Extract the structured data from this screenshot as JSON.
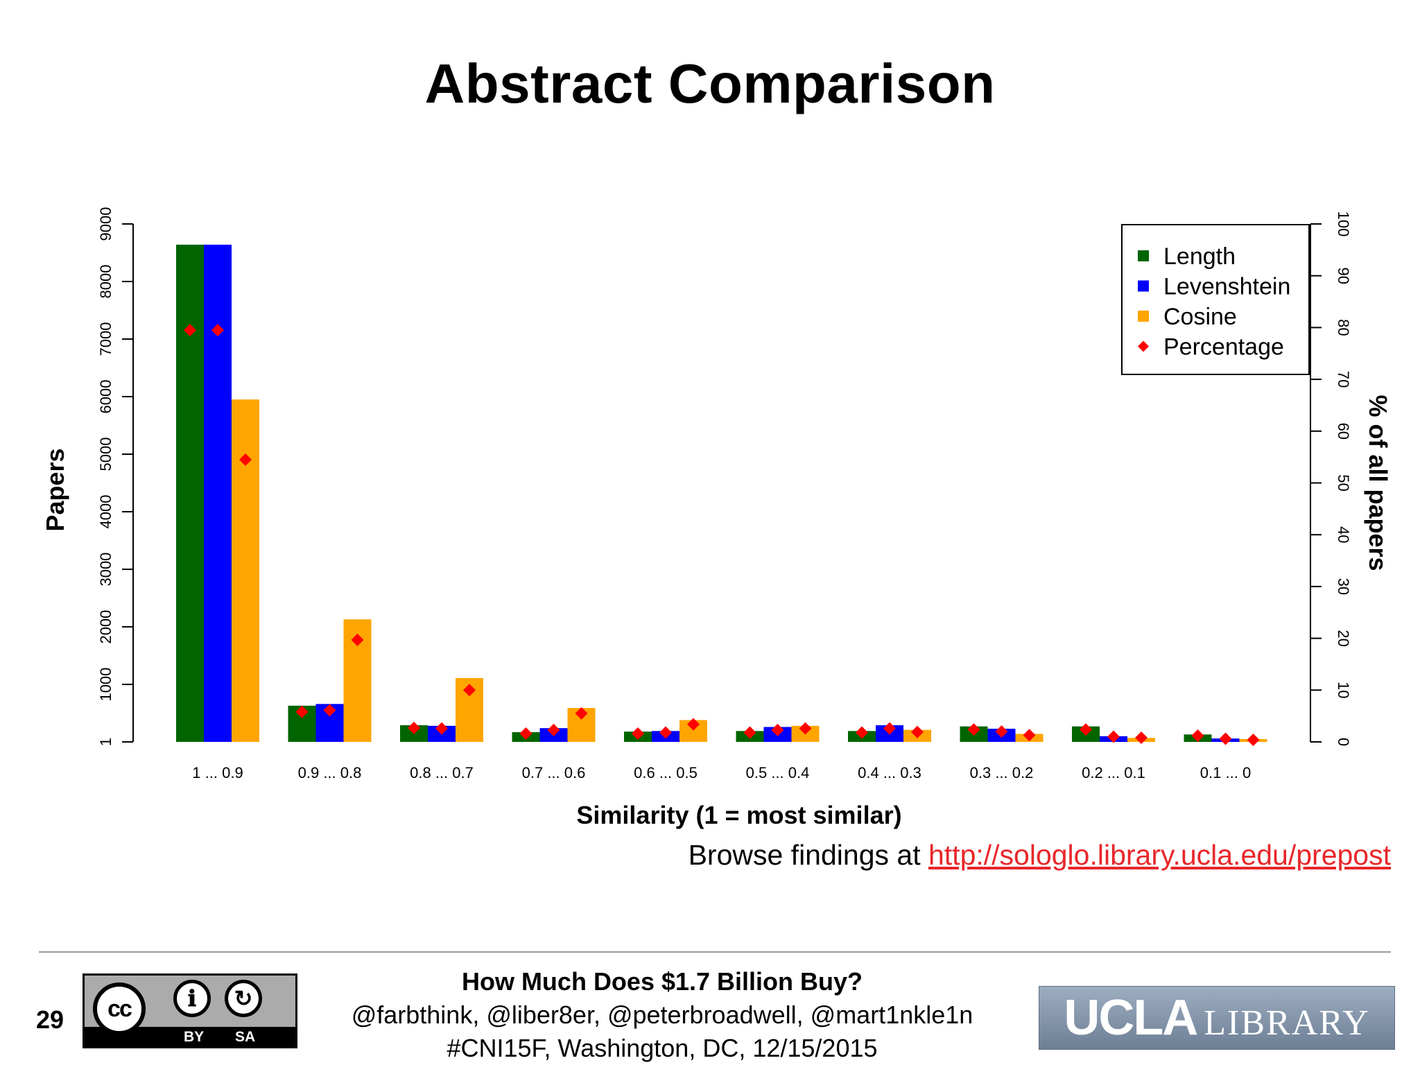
{
  "slide": {
    "title": "Abstract Comparison",
    "number": "29",
    "browse_prefix": "Browse findings at ",
    "browse_link": "http://sologlo.library.ucla.edu/prepost"
  },
  "footer": {
    "title": "How Much Does $1.7 Billion Buy?",
    "authors": "@farbthink, @liber8er, @peterbroadwell, @mart1nkle1n",
    "event": "#CNI15F, Washington, DC, 12/15/2015",
    "license": {
      "cc": "cc",
      "by": "BY",
      "sa": "SA",
      "by_icon": "person-icon",
      "sa_icon": "share-alike-icon"
    },
    "logo": {
      "word1": "UCLA",
      "word2": "LIBRARY"
    }
  },
  "chart_data": {
    "type": "bar",
    "title": "",
    "xlabel": "Similarity (1 = most similar)",
    "ylabel": "Papers",
    "y2label": "% of all papers",
    "categories": [
      "1 ... 0.9",
      "0.9 ... 0.8",
      "0.8 ... 0.7",
      "0.7 ... 0.6",
      "0.6 ... 0.5",
      "0.5 ... 0.4",
      "0.4 ... 0.3",
      "0.3 ... 0.2",
      "0.2 ... 0.1",
      "0.1 ... 0"
    ],
    "series": [
      {
        "name": "Length",
        "color": "#006400",
        "values": [
          8640,
          630,
          290,
          170,
          180,
          190,
          190,
          270,
          270,
          130
        ]
      },
      {
        "name": "Levenshtein",
        "color": "#0000ff",
        "values": [
          8640,
          660,
          280,
          240,
          190,
          260,
          290,
          230,
          100,
          60
        ]
      },
      {
        "name": "Cosine",
        "color": "#ffa500",
        "values": [
          5950,
          2130,
          1110,
          590,
          380,
          280,
          210,
          140,
          70,
          50
        ]
      }
    ],
    "percentage": {
      "name": "Percentage",
      "color": "#ff0000",
      "values": [
        [
          79.5,
          79.5,
          54.5
        ],
        [
          5.8,
          6.1,
          19.7
        ],
        [
          2.7,
          2.6,
          10.0
        ],
        [
          1.6,
          2.3,
          5.5
        ],
        [
          1.6,
          1.8,
          3.4
        ],
        [
          1.8,
          2.3,
          2.6
        ],
        [
          1.8,
          2.6,
          1.9
        ],
        [
          2.4,
          2.0,
          1.3
        ],
        [
          2.4,
          1.0,
          0.8
        ],
        [
          1.2,
          0.6,
          0.4
        ]
      ]
    },
    "y_ticks": [
      "1",
      "1000",
      "2000",
      "3000",
      "4000",
      "5000",
      "6000",
      "7000",
      "8000",
      "9000"
    ],
    "y2_ticks": [
      "0",
      "10",
      "20",
      "30",
      "40",
      "50",
      "60",
      "70",
      "80",
      "90",
      "100"
    ],
    "ylim": [
      1,
      9000
    ],
    "y2lim": [
      0,
      100
    ],
    "grid": false,
    "legend_position": "top-right"
  }
}
